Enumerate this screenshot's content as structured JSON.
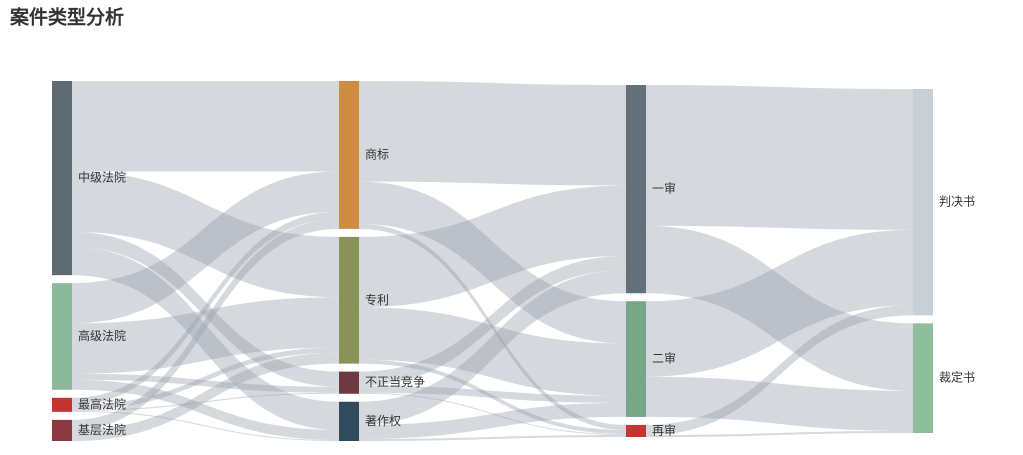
{
  "chart_data": {
    "type": "sankey",
    "title": "案件类型分析",
    "nodes": [
      {
        "name": "中级法院",
        "color": "#5f6b72"
      },
      {
        "name": "高级法院",
        "color": "#8cb99a"
      },
      {
        "name": "最高法院",
        "color": "#c23531"
      },
      {
        "name": "基层法院",
        "color": "#8a3a40"
      },
      {
        "name": "商标",
        "color": "#cd8c3f"
      },
      {
        "name": "专利",
        "color": "#8a9159"
      },
      {
        "name": "不正当竞争",
        "color": "#6e3a40"
      },
      {
        "name": "著作权",
        "color": "#2f4b5c"
      },
      {
        "name": "一审",
        "color": "#617079"
      },
      {
        "name": "二审",
        "color": "#76a588"
      },
      {
        "name": "再审",
        "color": "#c23531"
      },
      {
        "name": "判决书",
        "color": "#c8d0d6"
      },
      {
        "name": "裁定书",
        "color": "#8fbe9c"
      }
    ],
    "links": [
      {
        "source": "中级法院",
        "target": "商标",
        "value": 90
      },
      {
        "source": "中级法院",
        "target": "专利",
        "value": 60
      },
      {
        "source": "中级法院",
        "target": "不正当竞争",
        "value": 15
      },
      {
        "source": "中级法院",
        "target": "著作权",
        "value": 28
      },
      {
        "source": "高级法院",
        "target": "商标",
        "value": 40
      },
      {
        "source": "高级法院",
        "target": "专利",
        "value": 50
      },
      {
        "source": "高级法院",
        "target": "不正当竞争",
        "value": 6
      },
      {
        "source": "高级法院",
        "target": "著作权",
        "value": 10
      },
      {
        "source": "最高法院",
        "target": "商标",
        "value": 7
      },
      {
        "source": "最高法院",
        "target": "专利",
        "value": 5
      },
      {
        "source": "最高法院",
        "target": "不正当竞争",
        "value": 1
      },
      {
        "source": "最高法院",
        "target": "著作权",
        "value": 1
      },
      {
        "source": "基层法院",
        "target": "商标",
        "value": 10
      },
      {
        "source": "基层法院",
        "target": "专利",
        "value": 11
      },
      {
        "source": "商标",
        "target": "一审",
        "value": 100
      },
      {
        "source": "商标",
        "target": "二审",
        "value": 42
      },
      {
        "source": "商标",
        "target": "再审",
        "value": 5
      },
      {
        "source": "专利",
        "target": "一审",
        "value": 70
      },
      {
        "source": "专利",
        "target": "二审",
        "value": 52
      },
      {
        "source": "专利",
        "target": "再审",
        "value": 4
      },
      {
        "source": "不正当竞争",
        "target": "一审",
        "value": 14
      },
      {
        "source": "不正当竞争",
        "target": "二审",
        "value": 7
      },
      {
        "source": "不正当竞争",
        "target": "再审",
        "value": 1
      },
      {
        "source": "著作权",
        "target": "一审",
        "value": 23
      },
      {
        "source": "著作权",
        "target": "二审",
        "value": 14
      },
      {
        "source": "著作权",
        "target": "再审",
        "value": 2
      },
      {
        "source": "一审",
        "target": "判决书",
        "value": 140
      },
      {
        "source": "一审",
        "target": "裁定书",
        "value": 67
      },
      {
        "source": "二审",
        "target": "判决书",
        "value": 75
      },
      {
        "source": "二审",
        "target": "裁定书",
        "value": 40
      },
      {
        "source": "再审",
        "target": "判决书",
        "value": 10
      },
      {
        "source": "再审",
        "target": "裁定书",
        "value": 2
      }
    ]
  }
}
